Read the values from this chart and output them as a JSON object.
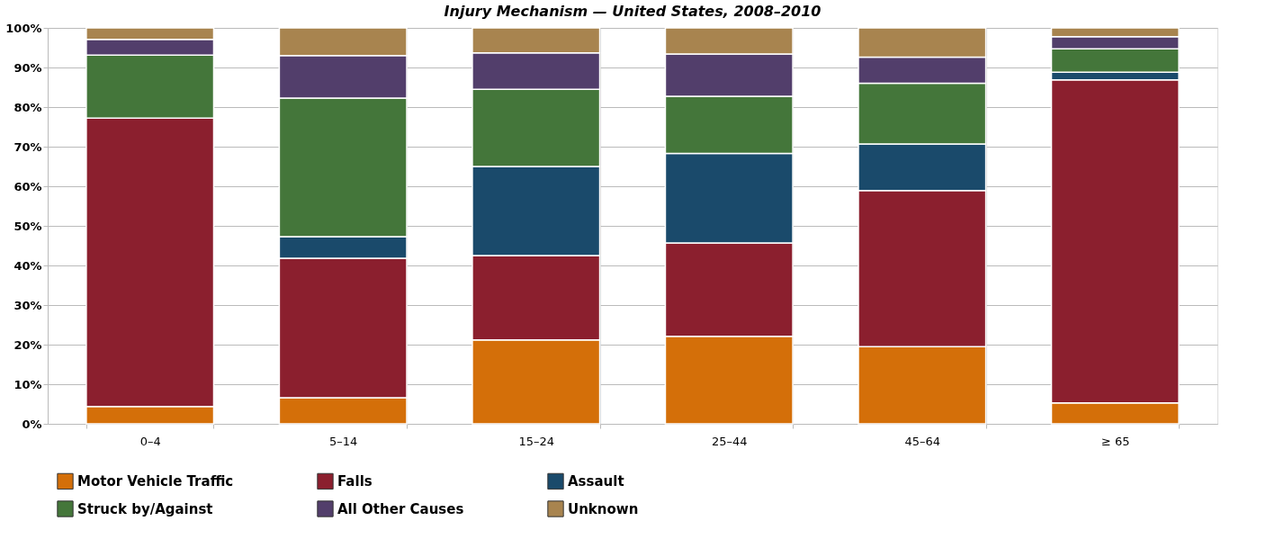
{
  "chart_data": {
    "type": "bar",
    "stacked": true,
    "title": "Injury Mechanism — United States, 2008–2010",
    "categories": [
      "0–4",
      "5–14",
      "15–24",
      "25–44",
      "45–64",
      "≥ 65"
    ],
    "series": [
      {
        "name": "Motor Vehicle Traffic",
        "color": "#d46f09",
        "values": [
          4.4,
          6.6,
          21.2,
          22.1,
          19.5,
          5.3
        ]
      },
      {
        "name": "Falls",
        "color": "#8b1f2e",
        "values": [
          72.8,
          35.2,
          21.3,
          23.6,
          39.4,
          81.6
        ]
      },
      {
        "name": "Assault",
        "color": "#1a4a6b",
        "values": [
          0,
          5.5,
          22.5,
          22.6,
          11.8,
          1.9
        ]
      },
      {
        "name": "Struck by/Against",
        "color": "#44763a",
        "values": [
          15.9,
          35.0,
          19.5,
          14.4,
          15.3,
          5.9
        ]
      },
      {
        "name": "All Other Causes",
        "color": "#523e6b",
        "values": [
          4.0,
          10.7,
          9.2,
          10.7,
          6.6,
          3.1
        ]
      },
      {
        "name": "Unknown",
        "color": "#a8844f",
        "values": [
          2.9,
          7.0,
          6.3,
          6.6,
          7.4,
          2.2
        ]
      }
    ],
    "ylim": [
      0,
      100
    ],
    "yticks": [
      {
        "value": 0,
        "label": "0%"
      },
      {
        "value": 10,
        "label": "10%"
      },
      {
        "value": 20,
        "label": "20%"
      },
      {
        "value": 30,
        "label": "30%"
      },
      {
        "value": 40,
        "label": "40%"
      },
      {
        "value": 50,
        "label": "50%"
      },
      {
        "value": 60,
        "label": "60%"
      },
      {
        "value": 70,
        "label": "70%"
      },
      {
        "value": 80,
        "label": "80%"
      },
      {
        "value": 90,
        "label": "90%"
      },
      {
        "value": 100,
        "label": "100%"
      }
    ],
    "grid": true,
    "legend": "bottom"
  }
}
